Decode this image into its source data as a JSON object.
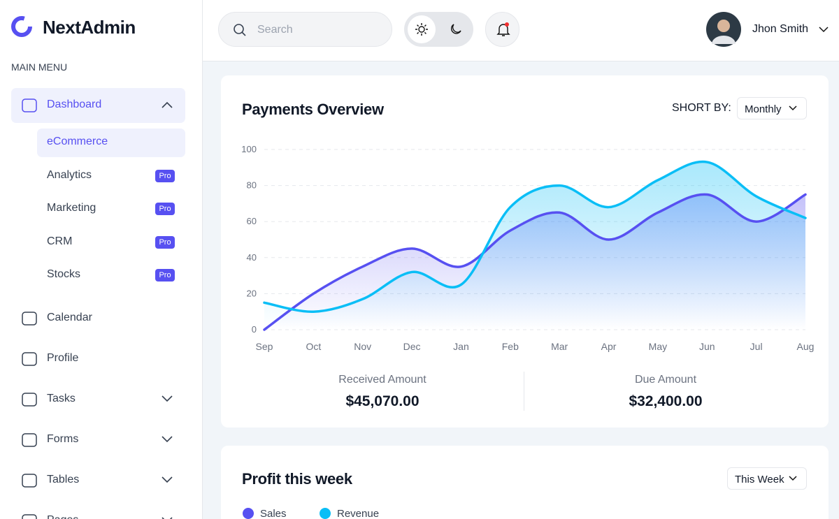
{
  "brand": "NextAdmin",
  "search_placeholder": "Search",
  "user": "Jhon Smith",
  "menu": {
    "heading": "MAIN MENU",
    "items": [
      {
        "label": "Dashboard",
        "children": [
          {
            "label": "eCommerce"
          },
          {
            "label": "Analytics",
            "badge": "Pro"
          },
          {
            "label": "Marketing",
            "badge": "Pro"
          },
          {
            "label": "CRM",
            "badge": "Pro"
          },
          {
            "label": "Stocks",
            "badge": "Pro"
          }
        ]
      },
      {
        "label": "Calendar"
      },
      {
        "label": "Profile"
      },
      {
        "label": "Tasks"
      },
      {
        "label": "Forms"
      },
      {
        "label": "Tables"
      },
      {
        "label": "Pages"
      }
    ]
  },
  "payments": {
    "sort_label": "SHORT BY:",
    "sort_value": "Monthly",
    "summary": [
      {
        "label": "Received Amount",
        "amount": "$45,070.00"
      },
      {
        "label": "Due Amount",
        "amount": "$32,400.00"
      }
    ]
  },
  "chart_data": {
    "type": "line",
    "title": "Payments Overview",
    "categories": [
      "Sep",
      "Oct",
      "Nov",
      "Dec",
      "Jan",
      "Feb",
      "Mar",
      "Apr",
      "May",
      "Jun",
      "Jul",
      "Aug"
    ],
    "series": [
      {
        "color": "#5750f1",
        "values": [
          0,
          20,
          35,
          45,
          35,
          55,
          65,
          50,
          65,
          75,
          60,
          75
        ]
      },
      {
        "color": "#0abef6",
        "values": [
          15,
          10,
          17,
          32,
          25,
          68,
          80,
          68,
          83,
          93,
          74,
          62
        ]
      }
    ],
    "ylim": [
      0,
      100
    ],
    "yticks": [
      0,
      20,
      40,
      60,
      80,
      100
    ],
    "grid": true
  },
  "profit": {
    "title": "Profit this week",
    "period": "This Week",
    "legend": [
      {
        "label": "Sales",
        "color": "#5750f1"
      },
      {
        "label": "Revenue",
        "color": "#0abef6"
      }
    ]
  }
}
